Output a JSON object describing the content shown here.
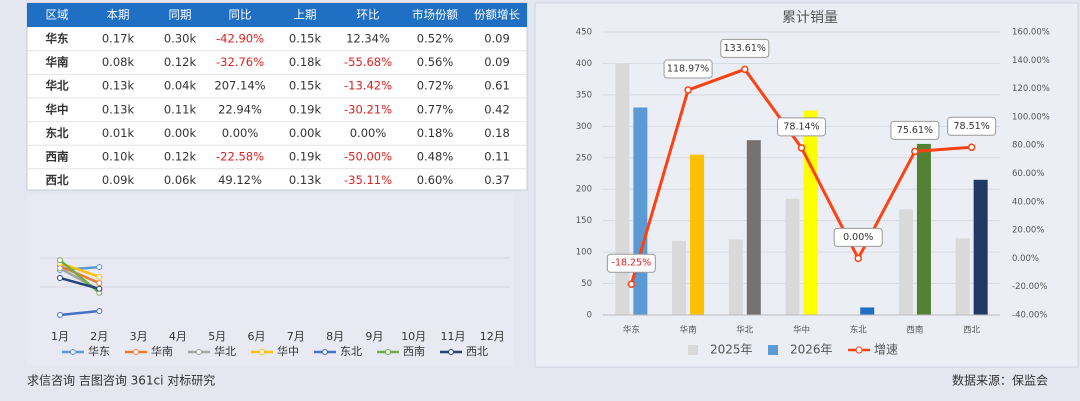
{
  "table": {
    "columns": [
      "区域",
      "本期",
      "同期",
      "同比",
      "上期",
      "环比",
      "市场份额",
      "份额增长"
    ],
    "rows": [
      [
        "华东",
        "0.17k",
        "0.30k",
        "-42.90%",
        "0.15k",
        "12.34%",
        "0.52%",
        "0.09"
      ],
      [
        "华南",
        "0.08k",
        "0.12k",
        "-32.76%",
        "0.18k",
        "-55.68%",
        "0.56%",
        "0.09"
      ],
      [
        "华北",
        "0.13k",
        "0.04k",
        "207.14%",
        "0.15k",
        "-13.42%",
        "0.72%",
        "0.61"
      ],
      [
        "华中",
        "0.13k",
        "0.11k",
        "22.94%",
        "0.19k",
        "-30.21%",
        "0.77%",
        "0.42"
      ],
      [
        "东北",
        "0.01k",
        "0.00k",
        "0.00%",
        "0.00k",
        "0.00%",
        "0.18%",
        "0.18"
      ],
      [
        "西南",
        "0.10k",
        "0.12k",
        "-22.58%",
        "0.19k",
        "-50.00%",
        "0.48%",
        "0.11"
      ],
      [
        "西北",
        "0.09k",
        "0.06k",
        "49.12%",
        "0.13k",
        "-35.11%",
        "0.60%",
        "0.37"
      ]
    ]
  },
  "mini_chart": {
    "type": "line",
    "categories": [
      "1月",
      "2月",
      "3月",
      "4月",
      "5月",
      "6月",
      "7月",
      "8月",
      "9月",
      "10月",
      "11月",
      "12月"
    ],
    "ylim": [
      0,
      1
    ],
    "series": [
      {
        "name": "华东",
        "color": "#5b9bd5",
        "values": [
          0.79,
          0.84,
          null,
          null,
          null,
          null,
          null,
          null,
          null,
          null,
          null,
          null
        ]
      },
      {
        "name": "华南",
        "color": "#ed7d31",
        "values": [
          0.86,
          0.56,
          null,
          null,
          null,
          null,
          null,
          null,
          null,
          null,
          null,
          null
        ]
      },
      {
        "name": "华北",
        "color": "#a5a5a5",
        "values": [
          0.82,
          0.44,
          null,
          null,
          null,
          null,
          null,
          null,
          null,
          null,
          null,
          null
        ]
      },
      {
        "name": "华中",
        "color": "#ffc000",
        "values": [
          0.91,
          0.67,
          null,
          null,
          null,
          null,
          null,
          null,
          null,
          null,
          null,
          null
        ]
      },
      {
        "name": "东北",
        "color": "#4472c4",
        "values": [
          0.0,
          0.07,
          null,
          null,
          null,
          null,
          null,
          null,
          null,
          null,
          null,
          null
        ]
      },
      {
        "name": "西南",
        "color": "#70ad47",
        "values": [
          0.96,
          0.39,
          null,
          null,
          null,
          null,
          null,
          null,
          null,
          null,
          null,
          null
        ]
      },
      {
        "name": "西北",
        "color": "#264478",
        "values": [
          0.65,
          0.46,
          null,
          null,
          null,
          null,
          null,
          null,
          null,
          null,
          null,
          null
        ]
      }
    ]
  },
  "chart_data": {
    "type": "bar",
    "title": "累计销量",
    "categories": [
      "华东",
      "华南",
      "华北",
      "华中",
      "东北",
      "西南",
      "西北"
    ],
    "ylim": [
      0,
      450
    ],
    "yticks": [
      0,
      50,
      100,
      150,
      200,
      250,
      300,
      350,
      400,
      450
    ],
    "y2lim": [
      -40,
      160
    ],
    "y2ticks": [
      {
        "value": -40,
        "label": "-40.00%"
      },
      {
        "value": -20,
        "label": "-20.00%"
      },
      {
        "value": 0,
        "label": "0.00%"
      },
      {
        "value": 20,
        "label": "20.00%"
      },
      {
        "value": 40,
        "label": "40.00%"
      },
      {
        "value": 60,
        "label": "60.00%"
      },
      {
        "value": 80,
        "label": "80.00%"
      },
      {
        "value": 100,
        "label": "100.00%"
      },
      {
        "value": 120,
        "label": "120.00%"
      },
      {
        "value": 140,
        "label": "140.00%"
      },
      {
        "value": 160,
        "label": "160.00%"
      }
    ],
    "grid": true,
    "series": [
      {
        "name": "2025年",
        "color": "#d9d9d9",
        "values": [
          400,
          118,
          120,
          185,
          0,
          168,
          122
        ]
      },
      {
        "name": "2026年",
        "color": "#5b9bd5",
        "point_colors": [
          "#5b9bd5",
          "#ffc000",
          "#767171",
          "#ffff00",
          "#1f6fc5",
          "#548235",
          "#203864"
        ],
        "values": [
          330,
          255,
          278,
          325,
          12,
          272,
          215
        ]
      },
      {
        "name": "增速",
        "type": "line",
        "axis": "y2",
        "color": "#ff4010",
        "values": [
          -18.25,
          118.97,
          133.61,
          78.14,
          0.0,
          75.61,
          78.51
        ],
        "value_labels": [
          "-18.25%",
          "118.97%",
          "133.61%",
          "78.14%",
          "0.00%",
          "75.61%",
          "78.51%"
        ]
      }
    ]
  },
  "footer": {
    "left": "求信咨询 吉图咨询 361ci 对标研究",
    "right": "数据来源：保监会"
  }
}
